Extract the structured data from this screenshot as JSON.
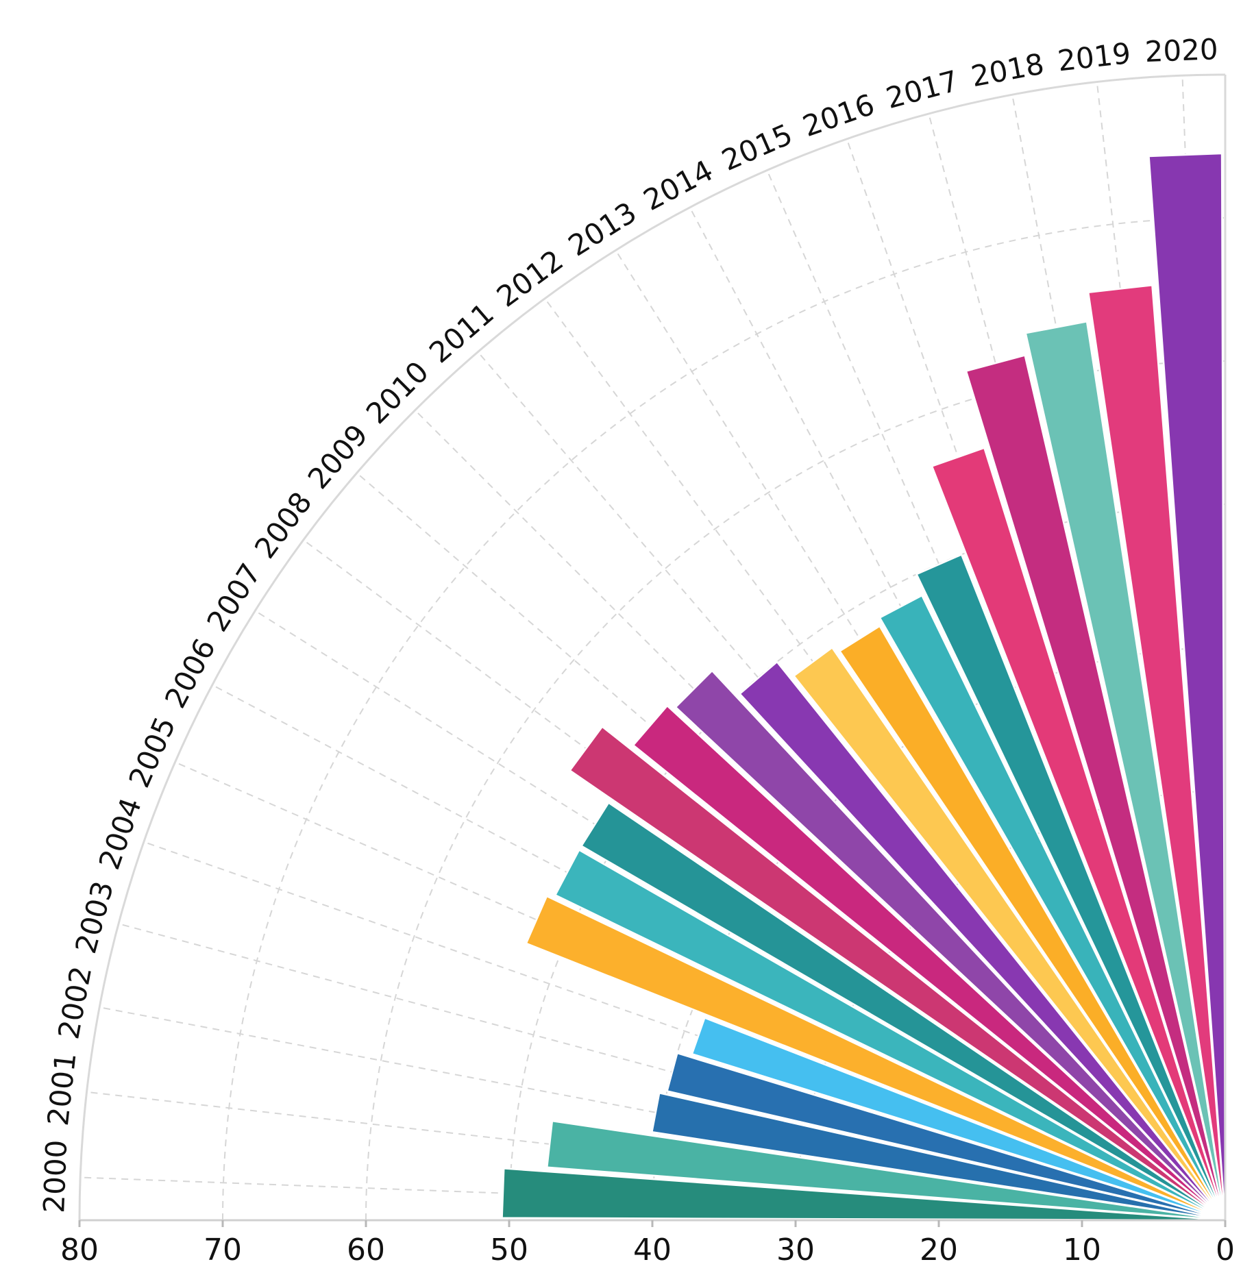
{
  "chart_data": {
    "type": "bar",
    "subtype": "polar-quarter-radial",
    "categories": [
      "2000",
      "2001",
      "2002",
      "2003",
      "2004",
      "2005",
      "2006",
      "2007",
      "2008",
      "2009",
      "2010",
      "2011",
      "2012",
      "2013",
      "2014",
      "2015",
      "2016",
      "2017",
      "2018",
      "2019",
      "2020"
    ],
    "values": [
      50.5,
      47.5,
      40.5,
      40.0,
      39.0,
      52.5,
      52.0,
      52.0,
      55.5,
      53.0,
      52.5,
      50.0,
      48.5,
      48.0,
      48.5,
      50.0,
      56.5,
      62.0,
      63.5,
      65.5,
      74.5
    ],
    "colors": [
      "#268c7c",
      "#4ab3a4",
      "#2670ad",
      "#2870b0",
      "#45bff0",
      "#fcb02c",
      "#3bb5bc",
      "#259497",
      "#cc3772",
      "#c9287e",
      "#8f46a9",
      "#8838b1",
      "#fdc851",
      "#fbae27",
      "#39b3ba",
      "#25969a",
      "#e33a78",
      "#c42d80",
      "#6bc2b5",
      "#e23b7c",
      "#8737b0"
    ],
    "axis": {
      "ticks": [
        0,
        10,
        20,
        30,
        40,
        50,
        60,
        70,
        80
      ],
      "range": [
        0,
        80
      ],
      "tick_labels": [
        "0",
        "10",
        "20",
        "30",
        "40",
        "50",
        "60",
        "70",
        "80"
      ]
    },
    "grid": true,
    "title": "",
    "xlabel": "",
    "ylabel": ""
  }
}
